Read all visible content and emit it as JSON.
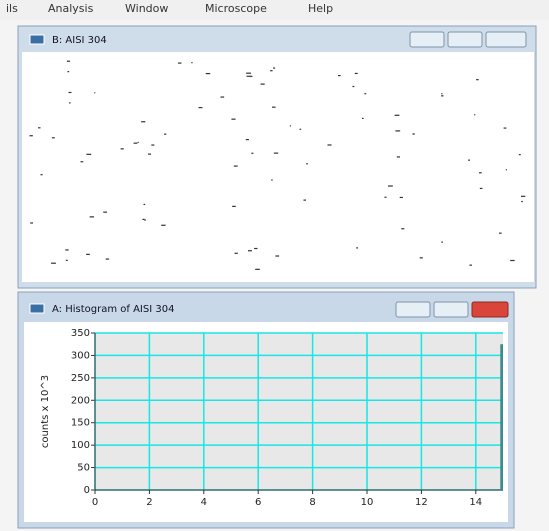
{
  "menu": [
    "ils",
    "Analysis",
    "Window",
    "Microscope",
    "Help"
  ],
  "windows": [
    {
      "title": "B: AISI 304"
    },
    {
      "title": "A: Histogram of AISI 304"
    }
  ],
  "chart_data": {
    "type": "histogram",
    "y_label": "counts x 10^3",
    "bins": [
      14.9,
      15.0
    ],
    "values": [
      325
    ],
    "color": "#3b8c8c",
    "xlim": [
      0,
      15
    ],
    "xticks": [
      0,
      2,
      4,
      6,
      8,
      10,
      12,
      14
    ],
    "ylim": [
      0,
      350
    ],
    "yticks": [
      0,
      50,
      100,
      150,
      200,
      250,
      300,
      350
    ],
    "grid": true,
    "grid_color": "#19e6e6"
  }
}
